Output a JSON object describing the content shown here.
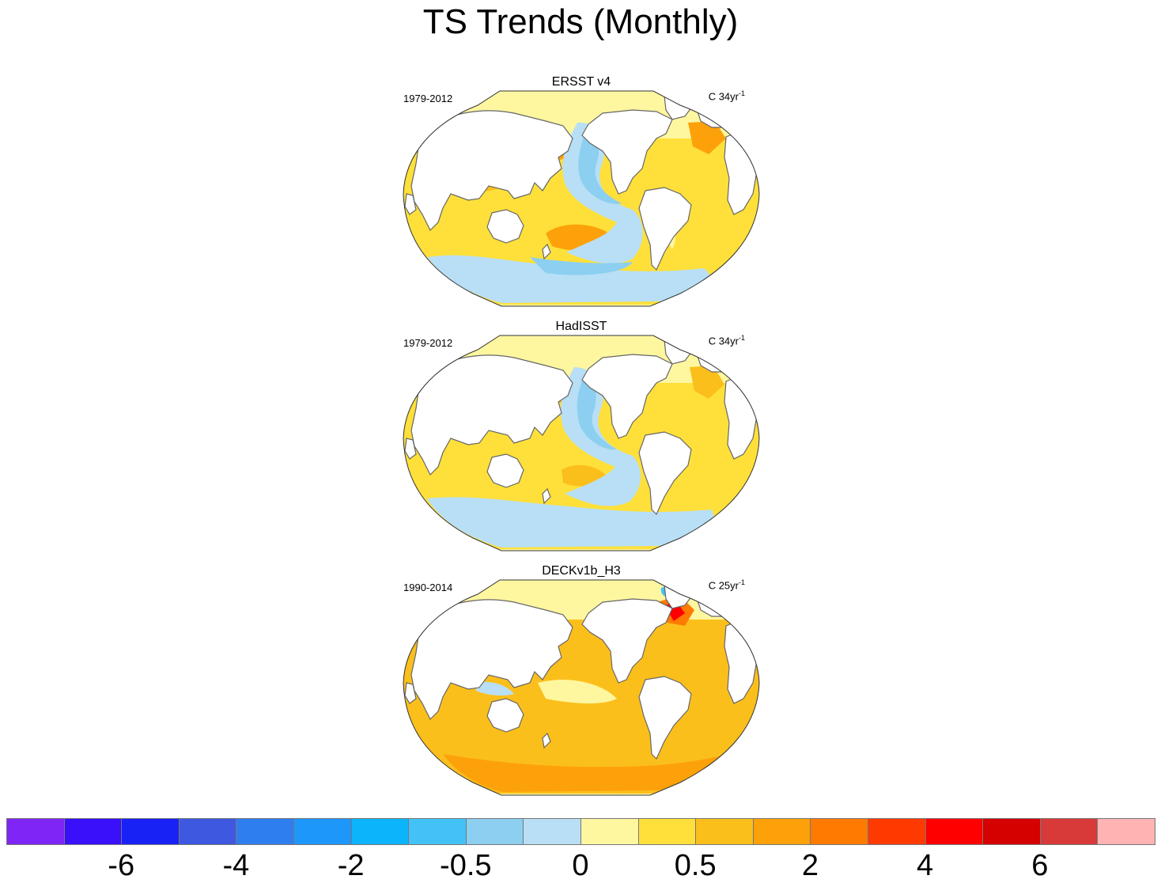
{
  "title": "TS Trends (Monthly)",
  "colors": {
    "land": "#ffffff",
    "coast": "#666666",
    "warm_light": "#fff7a0",
    "warm_mid": "#ffe03a",
    "warm_strong": "#fbbf1c",
    "warm_deep": "#fda10a",
    "orange": "#ff7a00",
    "red": "#ff0000",
    "cool_light": "#b8dff5",
    "cool_mid": "#8ccff0",
    "cool_strong": "#43c2f8"
  },
  "panels": [
    {
      "title": "ERSST v4",
      "period": "1979-2012",
      "units": "C 34yr",
      "units_sup": "-1"
    },
    {
      "title": "HadISST",
      "period": "1979-2012",
      "units": "C 34yr",
      "units_sup": "-1"
    },
    {
      "title": "DECKv1b_H3",
      "period": "1990-2014",
      "units": "C 25yr",
      "units_sup": "-1"
    }
  ],
  "colorbar": {
    "colors": [
      "#7f25f5",
      "#3a0ffa",
      "#1822f5",
      "#3f58e0",
      "#2e7ef0",
      "#1e97fb",
      "#0bb4fb",
      "#43c2f8",
      "#8ccff0",
      "#b8dff5",
      "#fff7a0",
      "#ffe03a",
      "#fbbf1c",
      "#fda10a",
      "#ff7a00",
      "#ff3a00",
      "#ff0000",
      "#d50000",
      "#d83a3a",
      "#ffb3b3"
    ],
    "labels": [
      "-6",
      "-4",
      "-2",
      "-0.5",
      "0",
      "0.5",
      "2",
      "4",
      "6"
    ]
  }
}
